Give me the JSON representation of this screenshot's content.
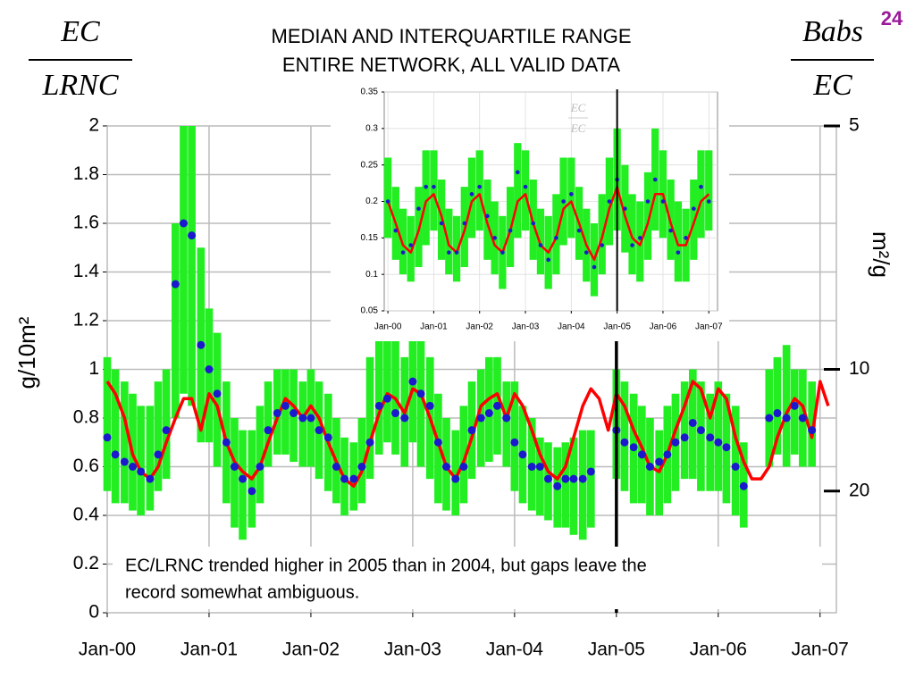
{
  "page_number": "24",
  "left_fraction": {
    "numerator": "EC",
    "denominator": "LRNC"
  },
  "right_fraction": {
    "numerator": "Babs",
    "denominator": "EC"
  },
  "chart_data": [
    {
      "type": "line",
      "title": [
        "MEDIAN AND INTERQUARTILE RANGE",
        "ENTIRE NETWORK, ALL VALID DATA"
      ],
      "ylabel": "g/10m²",
      "y2label": "m²/g",
      "annotation": [
        "EC/LRNC trended higher in 2005 than in 2004, but gaps leave the",
        "record somewhat ambiguous."
      ],
      "xlim": [
        2000,
        2007.16
      ],
      "ylim": [
        0,
        2
      ],
      "grid": true,
      "vline": 2005,
      "xticks": [
        {
          "value": 2000,
          "label": "Jan-00"
        },
        {
          "value": 2001,
          "label": "Jan-01"
        },
        {
          "value": 2002,
          "label": "Jan-02"
        },
        {
          "value": 2003,
          "label": "Jan-03"
        },
        {
          "value": 2004,
          "label": "Jan-04"
        },
        {
          "value": 2005,
          "label": "Jan-05"
        },
        {
          "value": 2006,
          "label": "Jan-06"
        },
        {
          "value": 2007,
          "label": "Jan-07"
        }
      ],
      "yticks": [
        0,
        0.2,
        0.4,
        0.6,
        0.8,
        1,
        1.2,
        1.4,
        1.6,
        1.8,
        2
      ],
      "y2scale": "reciprocal",
      "y2lim": [
        null,
        5
      ],
      "y2ticks": [
        5,
        10,
        20
      ],
      "x": [
        2000,
        2000.08,
        2000.17,
        2000.25,
        2000.33,
        2000.42,
        2000.5,
        2000.58,
        2000.67,
        2000.75,
        2000.83,
        2000.92,
        2001,
        2001.08,
        2001.17,
        2001.25,
        2001.33,
        2001.42,
        2001.5,
        2001.58,
        2001.67,
        2001.75,
        2001.83,
        2001.92,
        2002,
        2002.08,
        2002.17,
        2002.25,
        2002.33,
        2002.42,
        2002.5,
        2002.58,
        2002.67,
        2002.75,
        2002.83,
        2002.92,
        2003,
        2003.08,
        2003.17,
        2003.25,
        2003.33,
        2003.42,
        2003.5,
        2003.58,
        2003.67,
        2003.75,
        2003.83,
        2003.92,
        2004,
        2004.08,
        2004.17,
        2004.25,
        2004.33,
        2004.42,
        2004.5,
        2004.58,
        2004.67,
        2004.75,
        2004.83,
        2004.92,
        2005,
        2005.08,
        2005.17,
        2005.25,
        2005.33,
        2005.42,
        2005.5,
        2005.58,
        2005.67,
        2005.75,
        2005.83,
        2005.92,
        2006,
        2006.08,
        2006.17,
        2006.25,
        2006.33,
        2006.42,
        2006.5,
        2006.58,
        2006.67,
        2006.75,
        2006.83,
        2006.92,
        2007,
        2007.08
      ],
      "series": [
        {
          "type": "band",
          "color": "#22ee22",
          "low": [
            0.5,
            0.45,
            0.45,
            0.42,
            0.4,
            0.42,
            0.5,
            0.55,
            0.8,
            0.9,
            0.85,
            0.7,
            0.7,
            0.6,
            0.45,
            0.35,
            0.3,
            0.35,
            0.45,
            0.6,
            0.65,
            0.65,
            0.62,
            0.6,
            0.6,
            0.55,
            0.5,
            0.45,
            0.4,
            0.42,
            0.45,
            0.55,
            0.65,
            0.7,
            0.65,
            0.6,
            0.7,
            0.6,
            0.55,
            0.45,
            0.42,
            0.4,
            0.45,
            0.55,
            0.6,
            0.62,
            0.65,
            0.6,
            0.5,
            0.45,
            0.42,
            0.4,
            0.38,
            0.35,
            0.35,
            0.32,
            0.3,
            0.35,
            null,
            null,
            0.55,
            0.5,
            0.45,
            0.45,
            0.4,
            0.4,
            0.45,
            0.5,
            0.55,
            0.55,
            0.5,
            0.5,
            0.5,
            0.45,
            0.4,
            0.35,
            null,
            null,
            0.6,
            0.65,
            0.6,
            0.65,
            0.6,
            0.6,
            null,
            null
          ],
          "high": [
            1.05,
            1.0,
            0.95,
            0.9,
            0.85,
            0.85,
            0.95,
            1.0,
            1.6,
            2.0,
            2.0,
            1.5,
            1.25,
            1.15,
            0.95,
            0.8,
            0.75,
            0.75,
            0.85,
            0.95,
            1.0,
            1.0,
            1.0,
            0.95,
            1.0,
            0.95,
            0.9,
            0.8,
            0.72,
            0.7,
            0.8,
            1.05,
            1.25,
            1.3,
            1.15,
            1.05,
            1.3,
            1.2,
            1.05,
            0.9,
            0.8,
            0.75,
            0.85,
            0.95,
            1.0,
            1.05,
            1.05,
            0.95,
            0.95,
            0.85,
            0.8,
            0.72,
            0.7,
            0.68,
            0.7,
            0.72,
            0.75,
            0.75,
            null,
            null,
            1.0,
            0.95,
            0.9,
            0.85,
            0.8,
            0.75,
            0.85,
            0.9,
            0.95,
            1.0,
            0.95,
            0.9,
            0.95,
            0.9,
            0.85,
            0.7,
            null,
            null,
            1.0,
            1.05,
            1.1,
            1.0,
            1.0,
            0.95,
            null,
            null
          ]
        },
        {
          "type": "line",
          "color": "#ff0000",
          "values": [
            0.95,
            0.9,
            0.8,
            0.65,
            0.58,
            0.55,
            0.6,
            0.7,
            0.8,
            0.88,
            0.88,
            0.75,
            0.9,
            0.85,
            0.7,
            0.62,
            0.58,
            0.55,
            0.6,
            0.7,
            0.8,
            0.88,
            0.85,
            0.8,
            0.85,
            0.8,
            0.7,
            0.62,
            0.55,
            0.52,
            0.58,
            0.7,
            0.82,
            0.9,
            0.88,
            0.82,
            0.92,
            0.9,
            0.8,
            0.7,
            0.6,
            0.55,
            0.62,
            0.72,
            0.85,
            0.88,
            0.9,
            0.8,
            0.9,
            0.85,
            0.75,
            0.65,
            0.58,
            0.55,
            0.6,
            0.72,
            0.85,
            0.92,
            0.88,
            0.75,
            0.9,
            0.85,
            0.75,
            0.68,
            0.6,
            0.58,
            0.65,
            0.75,
            0.85,
            0.95,
            0.92,
            0.8,
            0.92,
            0.88,
            0.72,
            0.62,
            0.55,
            0.55,
            0.6,
            0.72,
            0.82,
            0.88,
            0.85,
            0.72,
            0.95,
            0.85
          ]
        },
        {
          "type": "scatter",
          "color": "#1a1acc",
          "values": [
            0.72,
            0.65,
            0.62,
            0.6,
            0.58,
            0.55,
            0.65,
            0.75,
            1.35,
            1.6,
            1.55,
            1.1,
            1.0,
            0.9,
            0.7,
            0.6,
            0.55,
            0.5,
            0.6,
            0.75,
            0.82,
            0.85,
            0.82,
            0.8,
            0.8,
            0.75,
            0.72,
            0.6,
            0.55,
            0.55,
            0.6,
            0.7,
            0.85,
            0.88,
            0.82,
            0.8,
            0.95,
            0.9,
            0.85,
            0.7,
            0.6,
            0.55,
            0.6,
            0.75,
            0.8,
            0.82,
            0.85,
            0.8,
            0.7,
            0.65,
            0.6,
            0.6,
            0.55,
            0.52,
            0.55,
            0.55,
            0.55,
            0.58,
            null,
            null,
            0.75,
            0.7,
            0.68,
            0.65,
            0.6,
            0.62,
            0.65,
            0.7,
            0.72,
            0.78,
            0.75,
            0.72,
            0.7,
            0.68,
            0.6,
            0.52,
            null,
            null,
            0.8,
            0.82,
            0.8,
            0.85,
            0.8,
            0.75,
            null,
            null
          ]
        }
      ]
    },
    {
      "type": "line",
      "annotation": [
        "EC",
        "EC"
      ],
      "xlim": [
        1999.92,
        2007.19
      ],
      "ylim": [
        0.05,
        0.35
      ],
      "grid": true,
      "vline": 2005,
      "xticks": [
        {
          "value": 2000,
          "label": "Jan-00"
        },
        {
          "value": 2001,
          "label": "Jan-01"
        },
        {
          "value": 2002,
          "label": "Jan-02"
        },
        {
          "value": 2003,
          "label": "Jan-03"
        },
        {
          "value": 2004,
          "label": "Jan-04"
        },
        {
          "value": 2005,
          "label": "Jan-05"
        },
        {
          "value": 2006,
          "label": "Jan-06"
        },
        {
          "value": 2007,
          "label": "Jan-07"
        }
      ],
      "yticks": [
        0.05,
        0.1,
        0.15,
        0.2,
        0.25,
        0.3,
        0.35
      ],
      "x": [
        2000,
        2000.17,
        2000.33,
        2000.5,
        2000.67,
        2000.83,
        2001,
        2001.17,
        2001.33,
        2001.5,
        2001.67,
        2001.83,
        2002,
        2002.17,
        2002.33,
        2002.5,
        2002.67,
        2002.83,
        2003,
        2003.17,
        2003.33,
        2003.5,
        2003.67,
        2003.83,
        2004,
        2004.17,
        2004.33,
        2004.5,
        2004.67,
        2004.83,
        2005,
        2005.17,
        2005.33,
        2005.5,
        2005.67,
        2005.83,
        2006,
        2006.17,
        2006.33,
        2006.5,
        2006.67,
        2006.83,
        2007
      ],
      "series": [
        {
          "type": "band",
          "color": "#22ee22",
          "low": [
            0.15,
            0.12,
            0.1,
            0.09,
            0.11,
            0.14,
            0.16,
            0.12,
            0.1,
            0.09,
            0.11,
            0.15,
            0.16,
            0.12,
            0.1,
            0.08,
            0.11,
            0.15,
            0.16,
            0.12,
            0.1,
            0.08,
            0.1,
            0.14,
            0.15,
            0.12,
            0.09,
            0.07,
            0.1,
            0.14,
            0.16,
            0.13,
            0.1,
            0.09,
            0.12,
            0.16,
            0.15,
            0.12,
            0.09,
            0.09,
            0.12,
            0.15,
            0.16
          ],
          "high": [
            0.26,
            0.22,
            0.19,
            0.18,
            0.22,
            0.27,
            0.27,
            0.23,
            0.19,
            0.18,
            0.22,
            0.26,
            0.27,
            0.23,
            0.2,
            0.18,
            0.22,
            0.28,
            0.27,
            0.23,
            0.19,
            0.18,
            0.21,
            0.26,
            0.26,
            0.22,
            0.19,
            0.17,
            0.21,
            0.26,
            0.3,
            0.25,
            0.21,
            0.2,
            0.24,
            0.3,
            0.27,
            0.23,
            0.2,
            0.19,
            0.23,
            0.27,
            0.27
          ]
        },
        {
          "type": "line",
          "color": "#ff0000",
          "values": [
            0.2,
            0.17,
            0.14,
            0.13,
            0.16,
            0.2,
            0.21,
            0.18,
            0.14,
            0.13,
            0.16,
            0.2,
            0.21,
            0.17,
            0.14,
            0.13,
            0.16,
            0.2,
            0.21,
            0.17,
            0.14,
            0.13,
            0.15,
            0.19,
            0.2,
            0.17,
            0.14,
            0.12,
            0.15,
            0.19,
            0.22,
            0.18,
            0.15,
            0.14,
            0.17,
            0.21,
            0.21,
            0.17,
            0.14,
            0.14,
            0.17,
            0.2,
            0.21
          ]
        },
        {
          "type": "scatter",
          "color": "#1a1acc",
          "values": [
            0.2,
            0.16,
            0.13,
            0.14,
            0.19,
            0.22,
            0.22,
            0.17,
            0.13,
            0.13,
            0.17,
            0.21,
            0.22,
            0.18,
            0.15,
            0.13,
            0.16,
            0.24,
            0.22,
            0.17,
            0.14,
            0.12,
            0.15,
            0.2,
            0.21,
            0.16,
            0.13,
            0.11,
            0.14,
            0.2,
            0.23,
            0.19,
            0.14,
            0.15,
            0.2,
            0.23,
            0.2,
            0.16,
            0.13,
            0.15,
            0.19,
            0.22,
            0.2
          ]
        }
      ]
    }
  ]
}
